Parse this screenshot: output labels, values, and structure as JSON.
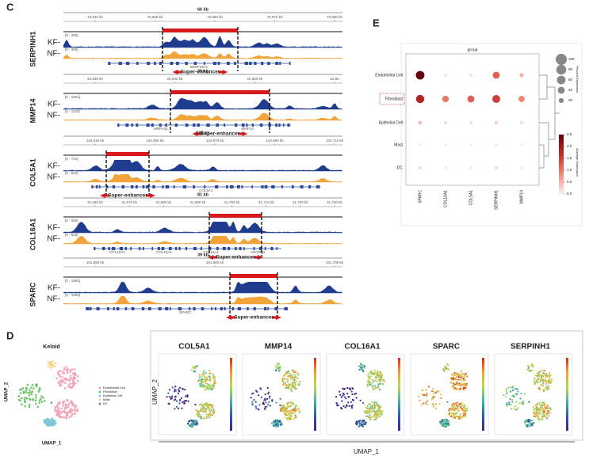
{
  "panel_c": {
    "label": "C",
    "tracks": [
      {
        "gene": "SERPINH1",
        "span": "66 kb",
        "coords": [
          "76,840 kb",
          "76,850 kb",
          "76,860 kb",
          "76,870 kb",
          "76,880 kb"
        ],
        "kf_range": "[0 - 305]",
        "nf_range": "[0 - 305]",
        "kf": "KF-",
        "nf": "NF-",
        "genes": [
          "SERPINH1"
        ],
        "enhancer": "Super-enhancer"
      },
      {
        "gene": "MMP14",
        "span": "35 kb",
        "coords": [
          "22,830 kb",
          "22,840 kb",
          "22,850 kb",
          "22,86"
        ],
        "kf_range": "[0 - 1061]",
        "nf_range": "[0 - 1120]",
        "kf": "KF-",
        "nf": "NF-",
        "genes": [
          "MRPL52",
          "MMP14"
        ],
        "enhancer": "Super-enhancer"
      },
      {
        "gene": "COL5A1",
        "span": "105 kb",
        "coords": [
          "134,630 kb",
          "134,650 kb",
          "134,670 kb",
          "134,690 kb",
          "134,710 kb"
        ],
        "kf_range": "[0 - 741]",
        "nf_range": "[0 - 810]",
        "kf": "KF-",
        "nf": "NF-",
        "genes": [
          "COL5A1"
        ],
        "enhancer": "Super-enhancer"
      },
      {
        "gene": "COL16A1",
        "span": "81 kb",
        "coords": [
          "31,660 kb",
          "31,670 kb",
          "31,680 kb",
          "31,690 kb",
          "31,700 kb",
          "31,710 kb",
          "31,720 kb",
          "31,730 kb"
        ],
        "kf_range": "[0 - 582]",
        "nf_range": "[0 - 618]",
        "kf": "KF-",
        "nf": "NF-",
        "genes": [
          "COL16A1",
          "COL16A1",
          "COL16A1",
          "ADGRB2"
        ],
        "enhancer": "Super-enhancer"
      },
      {
        "gene": "SPARC",
        "span": "39 kb",
        "coords": [
          "151,660 kb",
          "151,680 kb",
          "151,700 kb"
        ],
        "kf_range": "[0 - 1863]",
        "nf_range": "[0 - 1965]",
        "kf": "KF-",
        "nf": "NF-",
        "genes": [
          "SPARC"
        ],
        "enhancer": "Super-enhancer"
      }
    ]
  },
  "panel_e": {
    "label": "E",
    "title": "group",
    "rows": [
      "Endothelial Cell",
      "Fibroblast",
      "Epithelial Cell",
      "Mast",
      "DC"
    ],
    "columns": [
      "SPARC",
      "COL16A1",
      "COL5A1",
      "SERPINH1",
      "MMP14"
    ],
    "pct": [
      [
        60,
        10,
        10,
        40,
        15
      ],
      [
        55,
        35,
        40,
        50,
        30
      ],
      [
        12,
        8,
        8,
        10,
        8
      ],
      [
        6,
        5,
        5,
        6,
        5
      ],
      [
        8,
        6,
        6,
        8,
        6
      ]
    ],
    "avg": [
      [
        2.5,
        0.1,
        0.1,
        1.2,
        0.5
      ],
      [
        1.8,
        1.0,
        1.2,
        1.5,
        0.9
      ],
      [
        0.4,
        0.2,
        0.2,
        0.3,
        0.2
      ],
      [
        0.1,
        0.1,
        0.1,
        0.1,
        0.1
      ],
      [
        0.2,
        0.1,
        0.1,
        0.2,
        0.1
      ]
    ],
    "size_title": "Percent Expressed",
    "size_lim": [
      0,
      100
    ],
    "size_ticks": [
      100,
      80,
      60,
      40,
      20
    ],
    "color_title": "Average Expression",
    "color_lim": [
      0,
      2.5
    ],
    "color_ticks": [
      {
        "value": 0,
        "label": "0.0"
      },
      {
        "value": 0.5,
        "label": "0.5"
      },
      {
        "value": 1,
        "label": "1.0"
      },
      {
        "value": 1.5,
        "label": "1.5"
      },
      {
        "value": 2,
        "label": "2.0"
      },
      {
        "value": 2.5,
        "label": "2.5"
      }
    ]
  },
  "panel_d": {
    "label": "D",
    "overview": {
      "title": "Keloid",
      "legend": [
        "Endothelial Cell",
        "Fibroblast",
        "Epithelial Cell",
        "Mast",
        "DC"
      ],
      "colors": [
        "#f4a6b8",
        "#6cc46a",
        "#7fc6d8",
        "#f3d48a",
        "#9b6fb4"
      ],
      "x_label": "UMAP_1",
      "y_label": "UMAP_2"
    },
    "features": [
      "COL5A1",
      "MMP14",
      "COL16A1",
      "SPARC",
      "SERPINH1"
    ],
    "x_label": "UMAP_1",
    "y_label": "UMAP_2"
  }
}
